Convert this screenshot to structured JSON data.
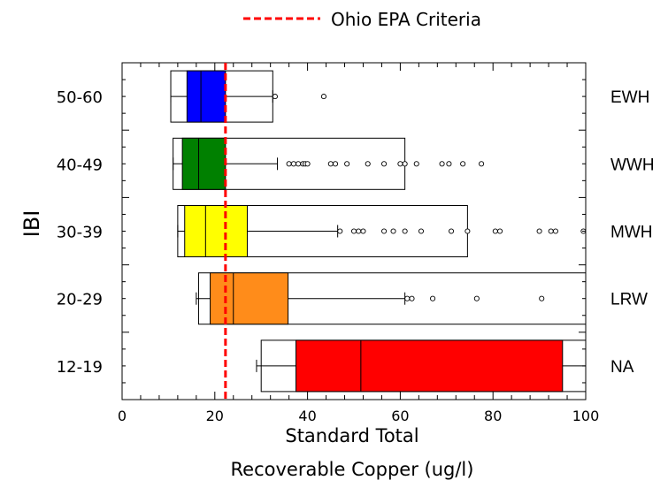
{
  "chart_data": {
    "type": "boxplot",
    "orientation": "horizontal",
    "legend": {
      "label": "Ohio EPA Criteria",
      "color": "#ff0000",
      "style": "dashed",
      "placement": "top-center"
    },
    "xlabel": [
      "Standard Total",
      "Recoverable Copper (ug/l)"
    ],
    "ylabel": "IBI",
    "xlim": [
      0,
      100
    ],
    "xticks": [
      "0",
      "20",
      "40",
      "60",
      "80",
      "100"
    ],
    "xtick_values": [
      0,
      20,
      40,
      60,
      80,
      100
    ],
    "reference_line": {
      "x": 22.3
    },
    "grid": false,
    "categories": [
      {
        "label": "50-60",
        "class": "EWH",
        "color": "#0000ff",
        "outer": [
          10.5,
          32.5
        ],
        "whisker": [
          10.5,
          32.5
        ],
        "q1": 14.0,
        "median": 17.0,
        "q3": 22.3,
        "outliers": [
          33.0,
          43.5
        ]
      },
      {
        "label": "40-49",
        "class": "WWH",
        "color": "#008000",
        "outer": [
          11.0,
          61.0
        ],
        "whisker": [
          11.0,
          33.5
        ],
        "q1": 13.0,
        "median": 16.5,
        "q3": 22.3,
        "outliers": [
          36.0,
          37.0,
          38.0,
          39.0,
          39.5,
          40.0,
          45.0,
          46.0,
          48.5,
          53.0,
          56.5,
          60.0,
          61.0,
          63.5,
          69.0,
          70.5,
          73.5,
          77.5
        ]
      },
      {
        "label": "30-39",
        "class": "MWH",
        "color": "#ffff00",
        "outer": [
          12.0,
          74.5
        ],
        "whisker": [
          12.0,
          46.5
        ],
        "q1": 13.5,
        "median": 18.0,
        "q3": 27.0,
        "outliers": [
          47.0,
          50.0,
          51.0,
          52.0,
          56.5,
          58.5,
          61.0,
          64.5,
          71.0,
          74.5,
          80.5,
          81.5,
          90.0,
          92.5,
          93.5,
          99.5
        ]
      },
      {
        "label": "20-29",
        "class": "LRW",
        "color": "#ff8c1a",
        "outer": [
          16.5,
          100
        ],
        "whisker": [
          16.0,
          61.0
        ],
        "q1": 19.0,
        "median": 24.0,
        "q3": 35.8,
        "outliers": [
          61.5,
          62.5,
          67.0,
          76.5,
          90.5
        ]
      },
      {
        "label": "12-19",
        "class": "NA",
        "color": "#ff0000",
        "outer": [
          30.0,
          100
        ],
        "whisker": [
          29.0,
          100
        ],
        "q1": 37.5,
        "median": 51.5,
        "q3": 95.0,
        "outliers": []
      }
    ]
  }
}
